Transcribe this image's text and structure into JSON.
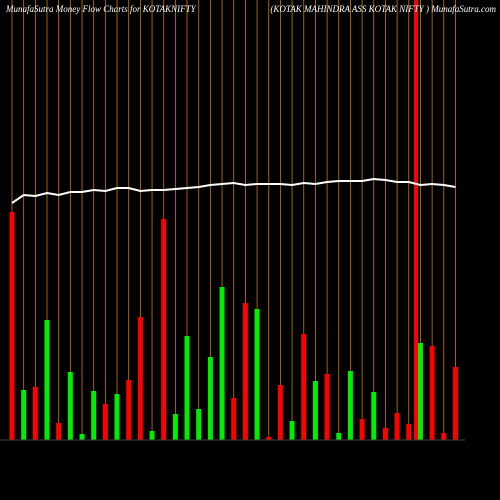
{
  "chart_data": {
    "type": "bar",
    "title": "MunafaSutra  Money Flow  Charts for KOTAKNIFTY",
    "subtitle": "(KOTAK MAHINDRA ASS KOTAK NIFTY ) MunafaSutra.com",
    "categories": [
      null,
      null,
      null,
      null,
      null,
      null,
      null,
      null,
      null,
      null,
      null,
      null,
      null,
      null,
      null,
      null,
      null,
      null,
      null,
      null,
      null,
      null,
      null,
      null,
      null,
      null,
      null,
      null,
      null,
      null,
      null,
      null,
      null,
      null,
      null,
      null,
      null,
      null,
      null
    ],
    "values": [
      228,
      50,
      53,
      120,
      17,
      68,
      6,
      49,
      36,
      46,
      60,
      123,
      9,
      221,
      26,
      104,
      31,
      83,
      153,
      42,
      137,
      131,
      3,
      55,
      19,
      106,
      59,
      66,
      7,
      69,
      21,
      48,
      12,
      27,
      16,
      97,
      94,
      7,
      73
    ],
    "bar_colors": [
      "#ff0000",
      "#00ee00",
      "#ff0000",
      "#00ee00",
      "#ff0000",
      "#00ee00",
      "#00ee00",
      "#00ee00",
      "#ff0000",
      "#00ee00",
      "#ff0000",
      "#ff0000",
      "#00ee00",
      "#ff0000",
      "#00ee00",
      "#00ee00",
      "#00ee00",
      "#00ee00",
      "#00ee00",
      "#ff0000",
      "#ff0000",
      "#00ee00",
      "#ff0000",
      "#ff0000",
      "#00ee00",
      "#ff0000",
      "#00ee00",
      "#ff0000",
      "#00ee00",
      "#00ee00",
      "#ff0000",
      "#00ee00",
      "#ff0000",
      "#ff0000",
      "#ff0000",
      "#00ee00",
      "#ff0000",
      "#ff0000",
      "#ff0000"
    ],
    "line": {
      "color": "#ffffff",
      "values": [
        237,
        245,
        244,
        247,
        245,
        248,
        248,
        250,
        249,
        252,
        252,
        249,
        250,
        250,
        251,
        252,
        253,
        255,
        256,
        257,
        255,
        256,
        256,
        256,
        255,
        257,
        256,
        258,
        259,
        259,
        259,
        261,
        260,
        258,
        258,
        255,
        256,
        255,
        253
      ]
    },
    "ylim": [
      0,
      440
    ],
    "grid": true,
    "grid_color": "#cc7a00"
  }
}
